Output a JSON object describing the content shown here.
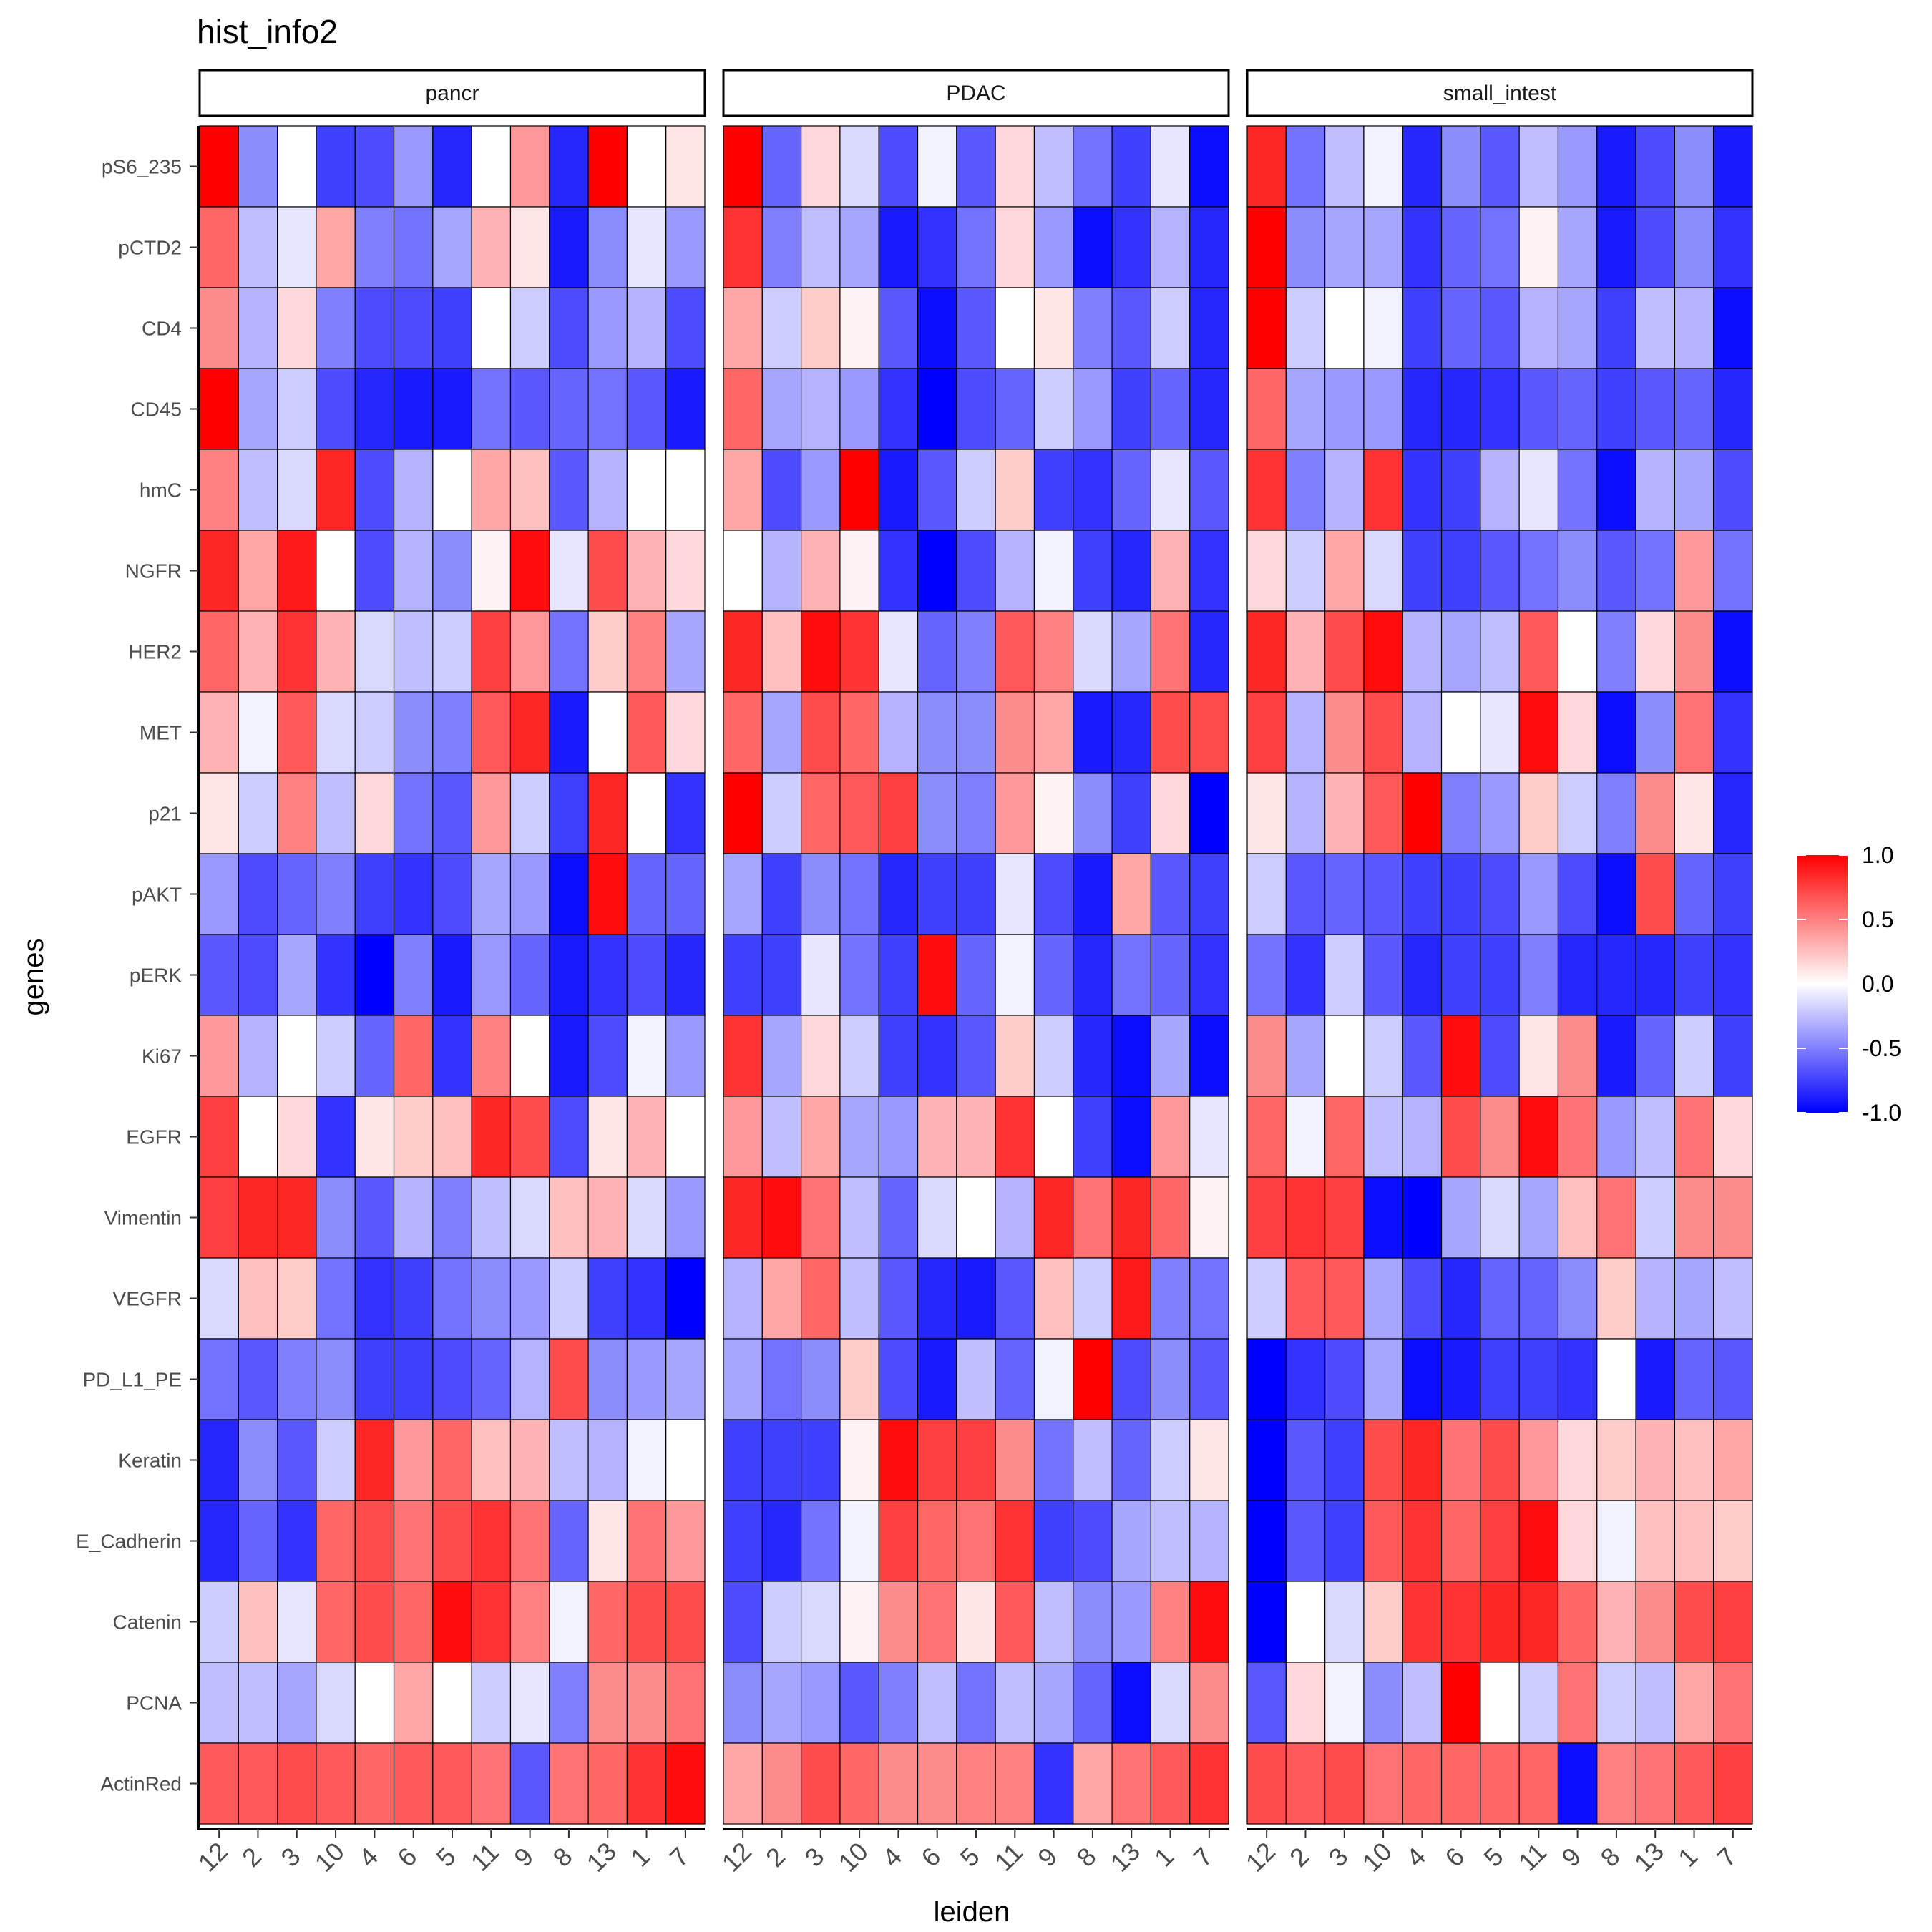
{
  "chart_data": {
    "type": "heatmap",
    "title": "hist_info2",
    "xlabel": "leiden",
    "ylabel": "genes",
    "facets": [
      "pancr",
      "PDAC",
      "small_intest"
    ],
    "x_categories": [
      "12",
      "2",
      "3",
      "10",
      "4",
      "6",
      "5",
      "11",
      "9",
      "8",
      "13",
      "1",
      "7"
    ],
    "y_categories": [
      "pS6_235",
      "pCTD2",
      "CD4",
      "CD45",
      "hmC",
      "NGFR",
      "HER2",
      "MET",
      "p21",
      "pAKT",
      "pERK",
      "Ki67",
      "EGFR",
      "Vimentin",
      "VEGFR",
      "PD_L1_PE",
      "Keratin",
      "E_Cadherin",
      "Catenin",
      "PCNA",
      "ActinRed"
    ],
    "color_scale": {
      "low": "#0000ff",
      "mid": "#ffffff",
      "high": "#ff0000",
      "limits": [
        -1,
        1
      ],
      "breaks": [
        "1.0",
        "0.5",
        "0.0",
        "-0.5",
        "-1.0"
      ]
    },
    "grid": false,
    "legend": "right",
    "values": {
      "pancr": [
        [
          1.0,
          -0.45,
          0.0,
          -0.75,
          -0.7,
          -0.4,
          -0.85,
          0.0,
          0.4,
          -0.85,
          1.0,
          0.0,
          0.1
        ],
        [
          0.6,
          -0.25,
          -0.1,
          0.35,
          -0.5,
          -0.55,
          -0.35,
          0.3,
          0.1,
          -0.9,
          -0.45,
          -0.1,
          -0.4
        ],
        [
          0.45,
          -0.3,
          0.15,
          -0.5,
          -0.7,
          -0.7,
          -0.75,
          0.0,
          -0.2,
          -0.7,
          -0.4,
          -0.3,
          -0.7
        ],
        [
          1.0,
          -0.35,
          -0.2,
          -0.7,
          -0.85,
          -0.9,
          -0.9,
          -0.55,
          -0.65,
          -0.6,
          -0.55,
          -0.65,
          -0.9
        ],
        [
          0.5,
          -0.25,
          -0.15,
          0.85,
          -0.7,
          -0.3,
          0.0,
          0.35,
          0.25,
          -0.65,
          -0.3,
          0.0,
          0.0
        ],
        [
          0.85,
          0.35,
          0.9,
          0.0,
          -0.7,
          -0.3,
          -0.45,
          0.05,
          0.95,
          -0.1,
          0.7,
          0.3,
          0.15
        ],
        [
          0.6,
          0.3,
          0.8,
          0.3,
          -0.15,
          -0.25,
          -0.2,
          0.75,
          0.4,
          -0.55,
          0.2,
          0.5,
          -0.35
        ],
        [
          0.3,
          -0.05,
          0.65,
          -0.15,
          -0.2,
          -0.45,
          -0.5,
          0.65,
          0.85,
          -0.9,
          0.0,
          0.65,
          0.15
        ],
        [
          0.1,
          -0.2,
          0.5,
          -0.25,
          0.15,
          -0.55,
          -0.65,
          0.4,
          -0.2,
          -0.75,
          0.85,
          0.0,
          -0.8
        ],
        [
          -0.4,
          -0.7,
          -0.6,
          -0.5,
          -0.75,
          -0.8,
          -0.7,
          -0.35,
          -0.4,
          -0.95,
          0.95,
          -0.6,
          -0.6
        ],
        [
          -0.65,
          -0.7,
          -0.35,
          -0.8,
          -1.0,
          -0.5,
          -0.9,
          -0.4,
          -0.6,
          -0.9,
          -0.8,
          -0.7,
          -0.85
        ],
        [
          0.4,
          -0.3,
          0.0,
          -0.2,
          -0.6,
          0.6,
          -0.8,
          0.5,
          0.0,
          -0.9,
          -0.7,
          -0.05,
          -0.4
        ],
        [
          0.75,
          0.0,
          0.15,
          -0.8,
          0.1,
          0.2,
          0.25,
          0.85,
          0.7,
          -0.7,
          0.1,
          0.3,
          0.0
        ],
        [
          0.75,
          0.85,
          0.85,
          -0.45,
          -0.65,
          -0.3,
          -0.5,
          -0.25,
          -0.15,
          0.25,
          0.3,
          -0.15,
          -0.4
        ],
        [
          -0.15,
          0.25,
          0.2,
          -0.55,
          -0.8,
          -0.75,
          -0.55,
          -0.45,
          -0.4,
          -0.2,
          -0.75,
          -0.8,
          -1.0
        ],
        [
          -0.55,
          -0.65,
          -0.5,
          -0.45,
          -0.75,
          -0.75,
          -0.7,
          -0.6,
          -0.3,
          0.7,
          -0.45,
          -0.4,
          -0.35
        ],
        [
          -0.85,
          -0.45,
          -0.65,
          -0.2,
          0.85,
          0.4,
          0.6,
          0.25,
          0.3,
          -0.25,
          -0.3,
          -0.05,
          0.0
        ],
        [
          -0.85,
          -0.6,
          -0.8,
          0.6,
          0.7,
          0.55,
          0.7,
          0.8,
          0.55,
          -0.6,
          0.1,
          0.55,
          0.4
        ],
        [
          -0.2,
          0.25,
          -0.1,
          0.6,
          0.7,
          0.6,
          0.95,
          0.8,
          0.5,
          -0.05,
          0.6,
          0.7,
          0.7
        ],
        [
          -0.25,
          -0.25,
          -0.35,
          -0.15,
          0.0,
          0.35,
          0.0,
          -0.2,
          -0.1,
          -0.5,
          0.45,
          0.45,
          0.55
        ],
        [
          0.65,
          0.65,
          0.7,
          0.65,
          0.6,
          0.65,
          0.65,
          0.55,
          -0.65,
          0.55,
          0.6,
          0.8,
          0.95
        ]
      ],
      "PDAC": [
        [
          1.0,
          -0.6,
          0.15,
          -0.15,
          -0.7,
          -0.05,
          -0.65,
          0.15,
          -0.25,
          -0.55,
          -0.75,
          -0.1,
          -0.95
        ],
        [
          0.8,
          -0.5,
          -0.25,
          -0.35,
          -0.9,
          -0.8,
          -0.55,
          0.15,
          -0.4,
          -0.95,
          -0.8,
          -0.3,
          -0.85
        ],
        [
          0.35,
          -0.2,
          0.2,
          0.05,
          -0.65,
          -0.95,
          -0.65,
          0.0,
          0.1,
          -0.5,
          -0.65,
          -0.2,
          -0.85
        ],
        [
          0.6,
          -0.35,
          -0.3,
          -0.4,
          -0.8,
          -1.0,
          -0.7,
          -0.6,
          -0.2,
          -0.4,
          -0.75,
          -0.6,
          -0.85
        ],
        [
          0.35,
          -0.7,
          -0.4,
          1.0,
          -0.9,
          -0.65,
          -0.2,
          0.2,
          -0.75,
          -0.8,
          -0.6,
          -0.1,
          -0.65
        ],
        [
          0.0,
          -0.3,
          0.3,
          0.05,
          -0.8,
          -1.0,
          -0.7,
          -0.3,
          -0.05,
          -0.75,
          -0.85,
          0.3,
          -0.8
        ],
        [
          0.85,
          0.25,
          0.95,
          0.8,
          -0.1,
          -0.6,
          -0.5,
          0.65,
          0.5,
          -0.15,
          -0.35,
          0.55,
          -0.85
        ],
        [
          0.6,
          -0.35,
          0.7,
          0.6,
          -0.3,
          -0.45,
          -0.45,
          0.45,
          0.35,
          -0.9,
          -0.85,
          0.7,
          0.7
        ],
        [
          1.0,
          -0.2,
          0.6,
          0.65,
          0.75,
          -0.45,
          -0.5,
          0.4,
          0.05,
          -0.45,
          -0.75,
          0.15,
          -1.0
        ],
        [
          -0.35,
          -0.75,
          -0.45,
          -0.55,
          -0.85,
          -0.75,
          -0.75,
          -0.1,
          -0.7,
          -0.9,
          0.35,
          -0.65,
          -0.75
        ],
        [
          -0.75,
          -0.75,
          -0.1,
          -0.55,
          -0.75,
          0.95,
          -0.6,
          -0.05,
          -0.6,
          -0.85,
          -0.55,
          -0.6,
          -0.8
        ],
        [
          0.8,
          -0.35,
          0.15,
          -0.2,
          -0.75,
          -0.8,
          -0.65,
          0.2,
          -0.2,
          -0.85,
          -0.95,
          -0.35,
          -0.95
        ],
        [
          0.4,
          -0.25,
          0.35,
          -0.35,
          -0.4,
          0.3,
          0.3,
          0.8,
          0.0,
          -0.75,
          -0.95,
          0.4,
          -0.1
        ],
        [
          0.85,
          0.95,
          0.55,
          -0.25,
          -0.6,
          -0.15,
          0.0,
          -0.3,
          0.85,
          0.55,
          0.85,
          0.6,
          0.05
        ],
        [
          -0.3,
          0.35,
          0.6,
          -0.25,
          -0.65,
          -0.85,
          -0.9,
          -0.65,
          0.25,
          -0.2,
          0.9,
          -0.5,
          -0.55
        ],
        [
          -0.35,
          -0.55,
          -0.45,
          0.2,
          -0.7,
          -0.9,
          -0.25,
          -0.6,
          -0.05,
          1.0,
          -0.7,
          -0.45,
          -0.65
        ],
        [
          -0.75,
          -0.75,
          -0.75,
          0.05,
          0.95,
          0.75,
          0.75,
          0.45,
          -0.55,
          -0.25,
          -0.6,
          -0.2,
          0.1
        ],
        [
          -0.75,
          -0.85,
          -0.55,
          -0.05,
          0.75,
          0.6,
          0.55,
          0.8,
          -0.75,
          -0.7,
          -0.35,
          -0.25,
          -0.3
        ],
        [
          -0.7,
          -0.2,
          -0.15,
          0.05,
          0.45,
          0.55,
          0.1,
          0.65,
          -0.25,
          -0.45,
          -0.4,
          0.5,
          0.95
        ],
        [
          -0.45,
          -0.35,
          -0.4,
          -0.65,
          -0.5,
          -0.25,
          -0.55,
          -0.25,
          -0.35,
          -0.6,
          -0.95,
          -0.15,
          0.45
        ],
        [
          0.35,
          0.45,
          0.7,
          0.6,
          0.45,
          0.45,
          0.5,
          0.5,
          -0.8,
          0.35,
          0.55,
          0.65,
          0.8
        ]
      ],
      "small_intest": [
        [
          0.85,
          -0.55,
          -0.25,
          -0.05,
          -0.85,
          -0.45,
          -0.65,
          -0.25,
          -0.4,
          -0.9,
          -0.7,
          -0.45,
          -0.9
        ],
        [
          1.0,
          -0.45,
          -0.35,
          -0.35,
          -0.8,
          -0.6,
          -0.55,
          0.05,
          -0.35,
          -0.9,
          -0.7,
          -0.45,
          -0.8
        ],
        [
          1.0,
          -0.2,
          0.0,
          -0.05,
          -0.75,
          -0.6,
          -0.65,
          -0.3,
          -0.35,
          -0.75,
          -0.25,
          -0.3,
          -0.95
        ],
        [
          0.6,
          -0.35,
          -0.4,
          -0.4,
          -0.85,
          -0.85,
          -0.8,
          -0.65,
          -0.6,
          -0.75,
          -0.65,
          -0.6,
          -0.85
        ],
        [
          0.8,
          -0.5,
          -0.3,
          0.8,
          -0.8,
          -0.75,
          -0.3,
          -0.1,
          -0.55,
          -0.95,
          -0.3,
          -0.35,
          -0.7
        ],
        [
          0.15,
          -0.2,
          0.35,
          -0.15,
          -0.75,
          -0.75,
          -0.65,
          -0.55,
          -0.45,
          -0.65,
          -0.55,
          0.4,
          -0.55
        ],
        [
          0.85,
          0.3,
          0.7,
          0.95,
          -0.3,
          -0.35,
          -0.25,
          0.65,
          0.0,
          -0.5,
          0.15,
          0.45,
          -0.95
        ],
        [
          0.75,
          -0.3,
          0.45,
          0.7,
          -0.3,
          0.0,
          -0.1,
          0.95,
          0.15,
          -0.95,
          -0.45,
          0.55,
          -0.8
        ],
        [
          0.1,
          -0.3,
          0.3,
          0.65,
          1.0,
          -0.5,
          -0.4,
          0.2,
          -0.2,
          -0.5,
          0.45,
          0.1,
          -0.85
        ],
        [
          -0.2,
          -0.65,
          -0.6,
          -0.65,
          -0.75,
          -0.75,
          -0.7,
          -0.4,
          -0.7,
          -0.95,
          0.7,
          -0.6,
          -0.75
        ],
        [
          -0.55,
          -0.8,
          -0.2,
          -0.65,
          -0.85,
          -0.75,
          -0.75,
          -0.5,
          -0.85,
          -0.85,
          -0.85,
          -0.75,
          -0.8
        ],
        [
          0.45,
          -0.35,
          0.0,
          -0.2,
          -0.65,
          0.95,
          -0.7,
          0.1,
          0.45,
          -0.9,
          -0.6,
          -0.2,
          -0.75
        ],
        [
          0.6,
          -0.05,
          0.6,
          -0.25,
          -0.3,
          0.7,
          0.45,
          0.95,
          0.55,
          -0.4,
          -0.25,
          0.55,
          0.15
        ],
        [
          0.75,
          0.8,
          0.75,
          -0.95,
          -1.0,
          -0.35,
          -0.15,
          -0.35,
          0.25,
          0.55,
          -0.2,
          0.45,
          0.45
        ],
        [
          -0.2,
          0.65,
          0.65,
          -0.35,
          -0.7,
          -0.85,
          -0.6,
          -0.6,
          -0.45,
          0.2,
          -0.3,
          -0.35,
          -0.25
        ],
        [
          -1.0,
          -0.8,
          -0.7,
          -0.35,
          -0.95,
          -0.9,
          -0.75,
          -0.75,
          -0.8,
          0.0,
          -0.9,
          -0.6,
          -0.65
        ],
        [
          -1.0,
          -0.65,
          -0.75,
          0.7,
          0.85,
          0.55,
          0.7,
          0.4,
          0.15,
          0.2,
          0.3,
          0.25,
          0.35
        ],
        [
          -1.0,
          -0.65,
          -0.75,
          0.65,
          0.8,
          0.6,
          0.75,
          0.95,
          0.15,
          -0.05,
          0.25,
          0.25,
          0.2
        ],
        [
          -1.0,
          0.0,
          -0.15,
          0.2,
          0.8,
          0.8,
          0.85,
          0.85,
          0.6,
          0.3,
          0.45,
          0.7,
          0.75
        ],
        [
          -0.65,
          0.15,
          -0.05,
          -0.45,
          -0.25,
          1.0,
          0.0,
          -0.2,
          0.55,
          -0.2,
          -0.25,
          0.35,
          0.55
        ],
        [
          0.7,
          0.65,
          0.7,
          0.55,
          0.6,
          0.6,
          0.6,
          0.6,
          -0.95,
          0.5,
          0.55,
          0.65,
          0.75
        ]
      ]
    }
  }
}
